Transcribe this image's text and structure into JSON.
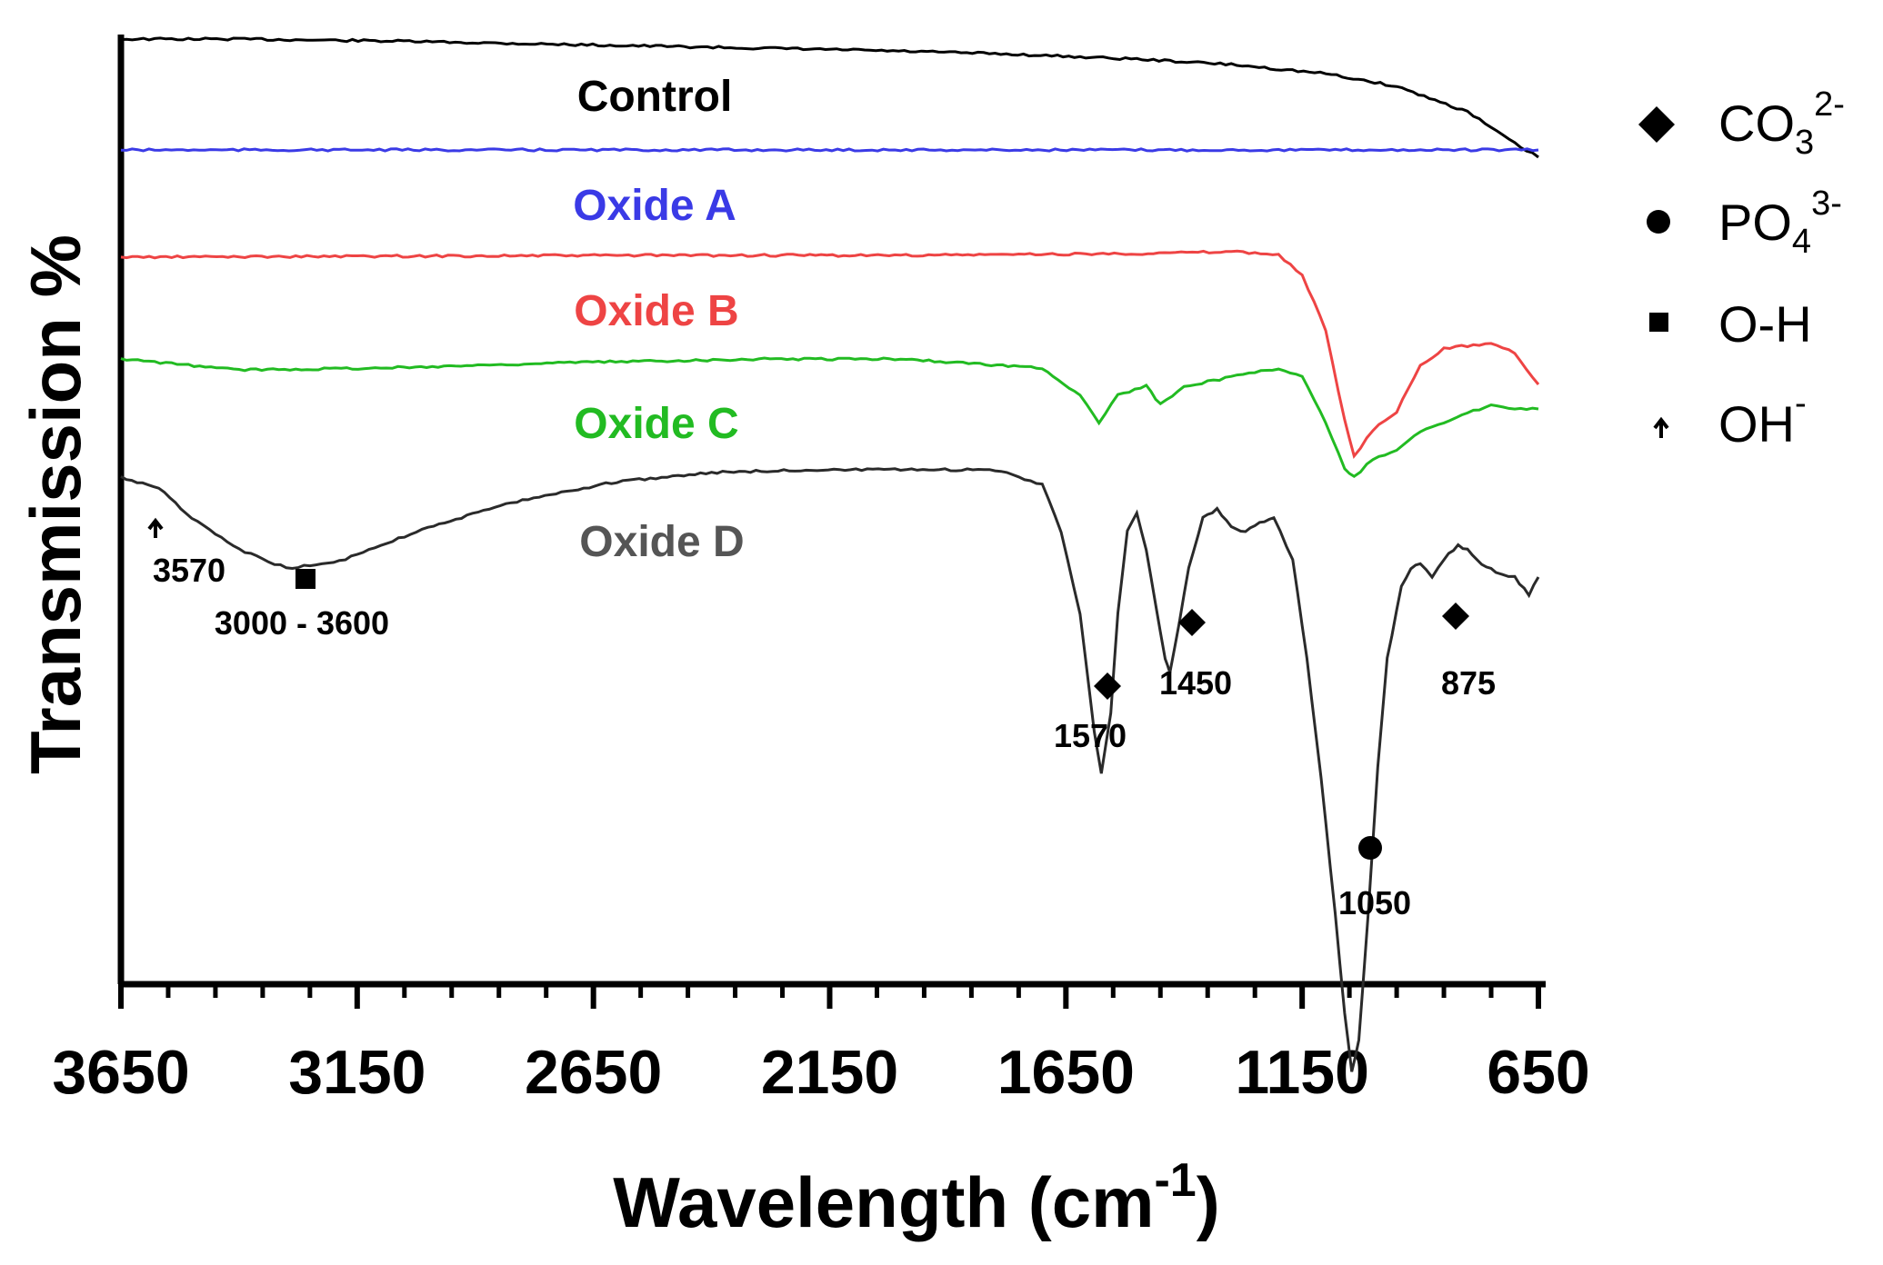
{
  "chart_data": {
    "type": "line",
    "xlabel": "Wavelength (cm",
    "xlabel_sup": "-1",
    "xlabel_close": ")",
    "ylabel": "Transmission %",
    "xlim": [
      3650,
      650
    ],
    "x_ticks": [
      "3650",
      "3150",
      "2650",
      "2150",
      "1650",
      "1150",
      "650"
    ],
    "series": [
      {
        "name": "Control",
        "color": "#000000",
        "label_color": "#000000",
        "base": 0,
        "points": [
          [
            3650,
            0
          ],
          [
            3400,
            0
          ],
          [
            3100,
            2
          ],
          [
            2700,
            6
          ],
          [
            2300,
            10
          ],
          [
            2100,
            12
          ],
          [
            1800,
            16
          ],
          [
            1500,
            22
          ],
          [
            1300,
            28
          ],
          [
            1100,
            38
          ],
          [
            950,
            52
          ],
          [
            800,
            80
          ],
          [
            700,
            115
          ],
          [
            650,
            130
          ]
        ]
      },
      {
        "name": "Oxide A",
        "color": "#3a3ae6",
        "label_color": "#3a3ae6",
        "base": 0,
        "points": [
          [
            3650,
            0
          ],
          [
            3200,
            0
          ],
          [
            2800,
            0
          ],
          [
            2400,
            0
          ],
          [
            2000,
            0
          ],
          [
            1600,
            0
          ],
          [
            1200,
            0
          ],
          [
            900,
            0
          ],
          [
            650,
            0
          ]
        ]
      },
      {
        "name": "Oxide B",
        "color": "#ee4444",
        "label_color": "#ee4444",
        "base": 0,
        "points": [
          [
            3650,
            0
          ],
          [
            2600,
            -2
          ],
          [
            2000,
            -2
          ],
          [
            1500,
            -4
          ],
          [
            1300,
            -6
          ],
          [
            1200,
            -3
          ],
          [
            1150,
            20
          ],
          [
            1100,
            80
          ],
          [
            1060,
            180
          ],
          [
            1040,
            220
          ],
          [
            1000,
            190
          ],
          [
            950,
            170
          ],
          [
            900,
            120
          ],
          [
            850,
            100
          ],
          [
            750,
            95
          ],
          [
            700,
            105
          ],
          [
            650,
            140
          ]
        ]
      },
      {
        "name": "Oxide C",
        "color": "#22bb22",
        "label_color": "#22bb22",
        "base": 0,
        "points": [
          [
            3650,
            0
          ],
          [
            3400,
            12
          ],
          [
            3100,
            10
          ],
          [
            2700,
            4
          ],
          [
            2300,
            0
          ],
          [
            2000,
            0
          ],
          [
            1700,
            10
          ],
          [
            1620,
            40
          ],
          [
            1580,
            70
          ],
          [
            1540,
            40
          ],
          [
            1480,
            30
          ],
          [
            1450,
            50
          ],
          [
            1400,
            30
          ],
          [
            1300,
            20
          ],
          [
            1200,
            10
          ],
          [
            1150,
            20
          ],
          [
            1100,
            70
          ],
          [
            1060,
            120
          ],
          [
            1040,
            130
          ],
          [
            1000,
            110
          ],
          [
            950,
            100
          ],
          [
            900,
            80
          ],
          [
            850,
            70
          ],
          [
            800,
            60
          ],
          [
            750,
            50
          ],
          [
            700,
            55
          ],
          [
            650,
            55
          ]
        ]
      },
      {
        "name": "Oxide D",
        "color": "#2a2a2a",
        "label_color": "#555555",
        "base": 0,
        "points": [
          [
            3650,
            0
          ],
          [
            3570,
            12
          ],
          [
            3500,
            45
          ],
          [
            3400,
            80
          ],
          [
            3300,
            100
          ],
          [
            3200,
            95
          ],
          [
            3100,
            75
          ],
          [
            3000,
            55
          ],
          [
            2800,
            25
          ],
          [
            2600,
            5
          ],
          [
            2400,
            -5
          ],
          [
            2200,
            -8
          ],
          [
            2000,
            -8
          ],
          [
            1800,
            -8
          ],
          [
            1700,
            8
          ],
          [
            1660,
            60
          ],
          [
            1620,
            150
          ],
          [
            1590,
            280
          ],
          [
            1575,
            325
          ],
          [
            1555,
            260
          ],
          [
            1540,
            150
          ],
          [
            1520,
            60
          ],
          [
            1500,
            40
          ],
          [
            1480,
            80
          ],
          [
            1460,
            140
          ],
          [
            1440,
            200
          ],
          [
            1430,
            215
          ],
          [
            1410,
            160
          ],
          [
            1390,
            100
          ],
          [
            1360,
            45
          ],
          [
            1330,
            35
          ],
          [
            1300,
            55
          ],
          [
            1270,
            60
          ],
          [
            1240,
            50
          ],
          [
            1210,
            45
          ],
          [
            1170,
            90
          ],
          [
            1140,
            200
          ],
          [
            1110,
            330
          ],
          [
            1080,
            480
          ],
          [
            1060,
            590
          ],
          [
            1045,
            655
          ],
          [
            1030,
            620
          ],
          [
            1010,
            480
          ],
          [
            990,
            320
          ],
          [
            970,
            200
          ],
          [
            940,
            120
          ],
          [
            920,
            100
          ],
          [
            900,
            95
          ],
          [
            875,
            110
          ],
          [
            850,
            90
          ],
          [
            820,
            75
          ],
          [
            800,
            80
          ],
          [
            770,
            95
          ],
          [
            740,
            105
          ],
          [
            700,
            110
          ],
          [
            670,
            130
          ],
          [
            650,
            110
          ]
        ]
      }
    ],
    "annotations": [
      {
        "marker": "arrow",
        "label": "3570",
        "x": 3570
      },
      {
        "marker": "square",
        "label": "3000 - 3600",
        "x": 3260
      },
      {
        "marker": "diamond",
        "label": "1570",
        "x": 1575
      },
      {
        "marker": "diamond",
        "label": "1450",
        "x": 1390
      },
      {
        "marker": "circle",
        "label": "1050",
        "x": 1045
      },
      {
        "marker": "diamond",
        "label": "875",
        "x": 845
      }
    ],
    "legend": [
      {
        "marker": "diamond",
        "base": "CO",
        "sub": "3",
        "sup": "2-"
      },
      {
        "marker": "circle",
        "base": "PO",
        "sub": "4",
        "sup": "3-"
      },
      {
        "marker": "square",
        "base": "O-H",
        "sub": "",
        "sup": ""
      },
      {
        "marker": "arrow",
        "base": "OH",
        "sub": "",
        "sup": "-"
      }
    ]
  }
}
